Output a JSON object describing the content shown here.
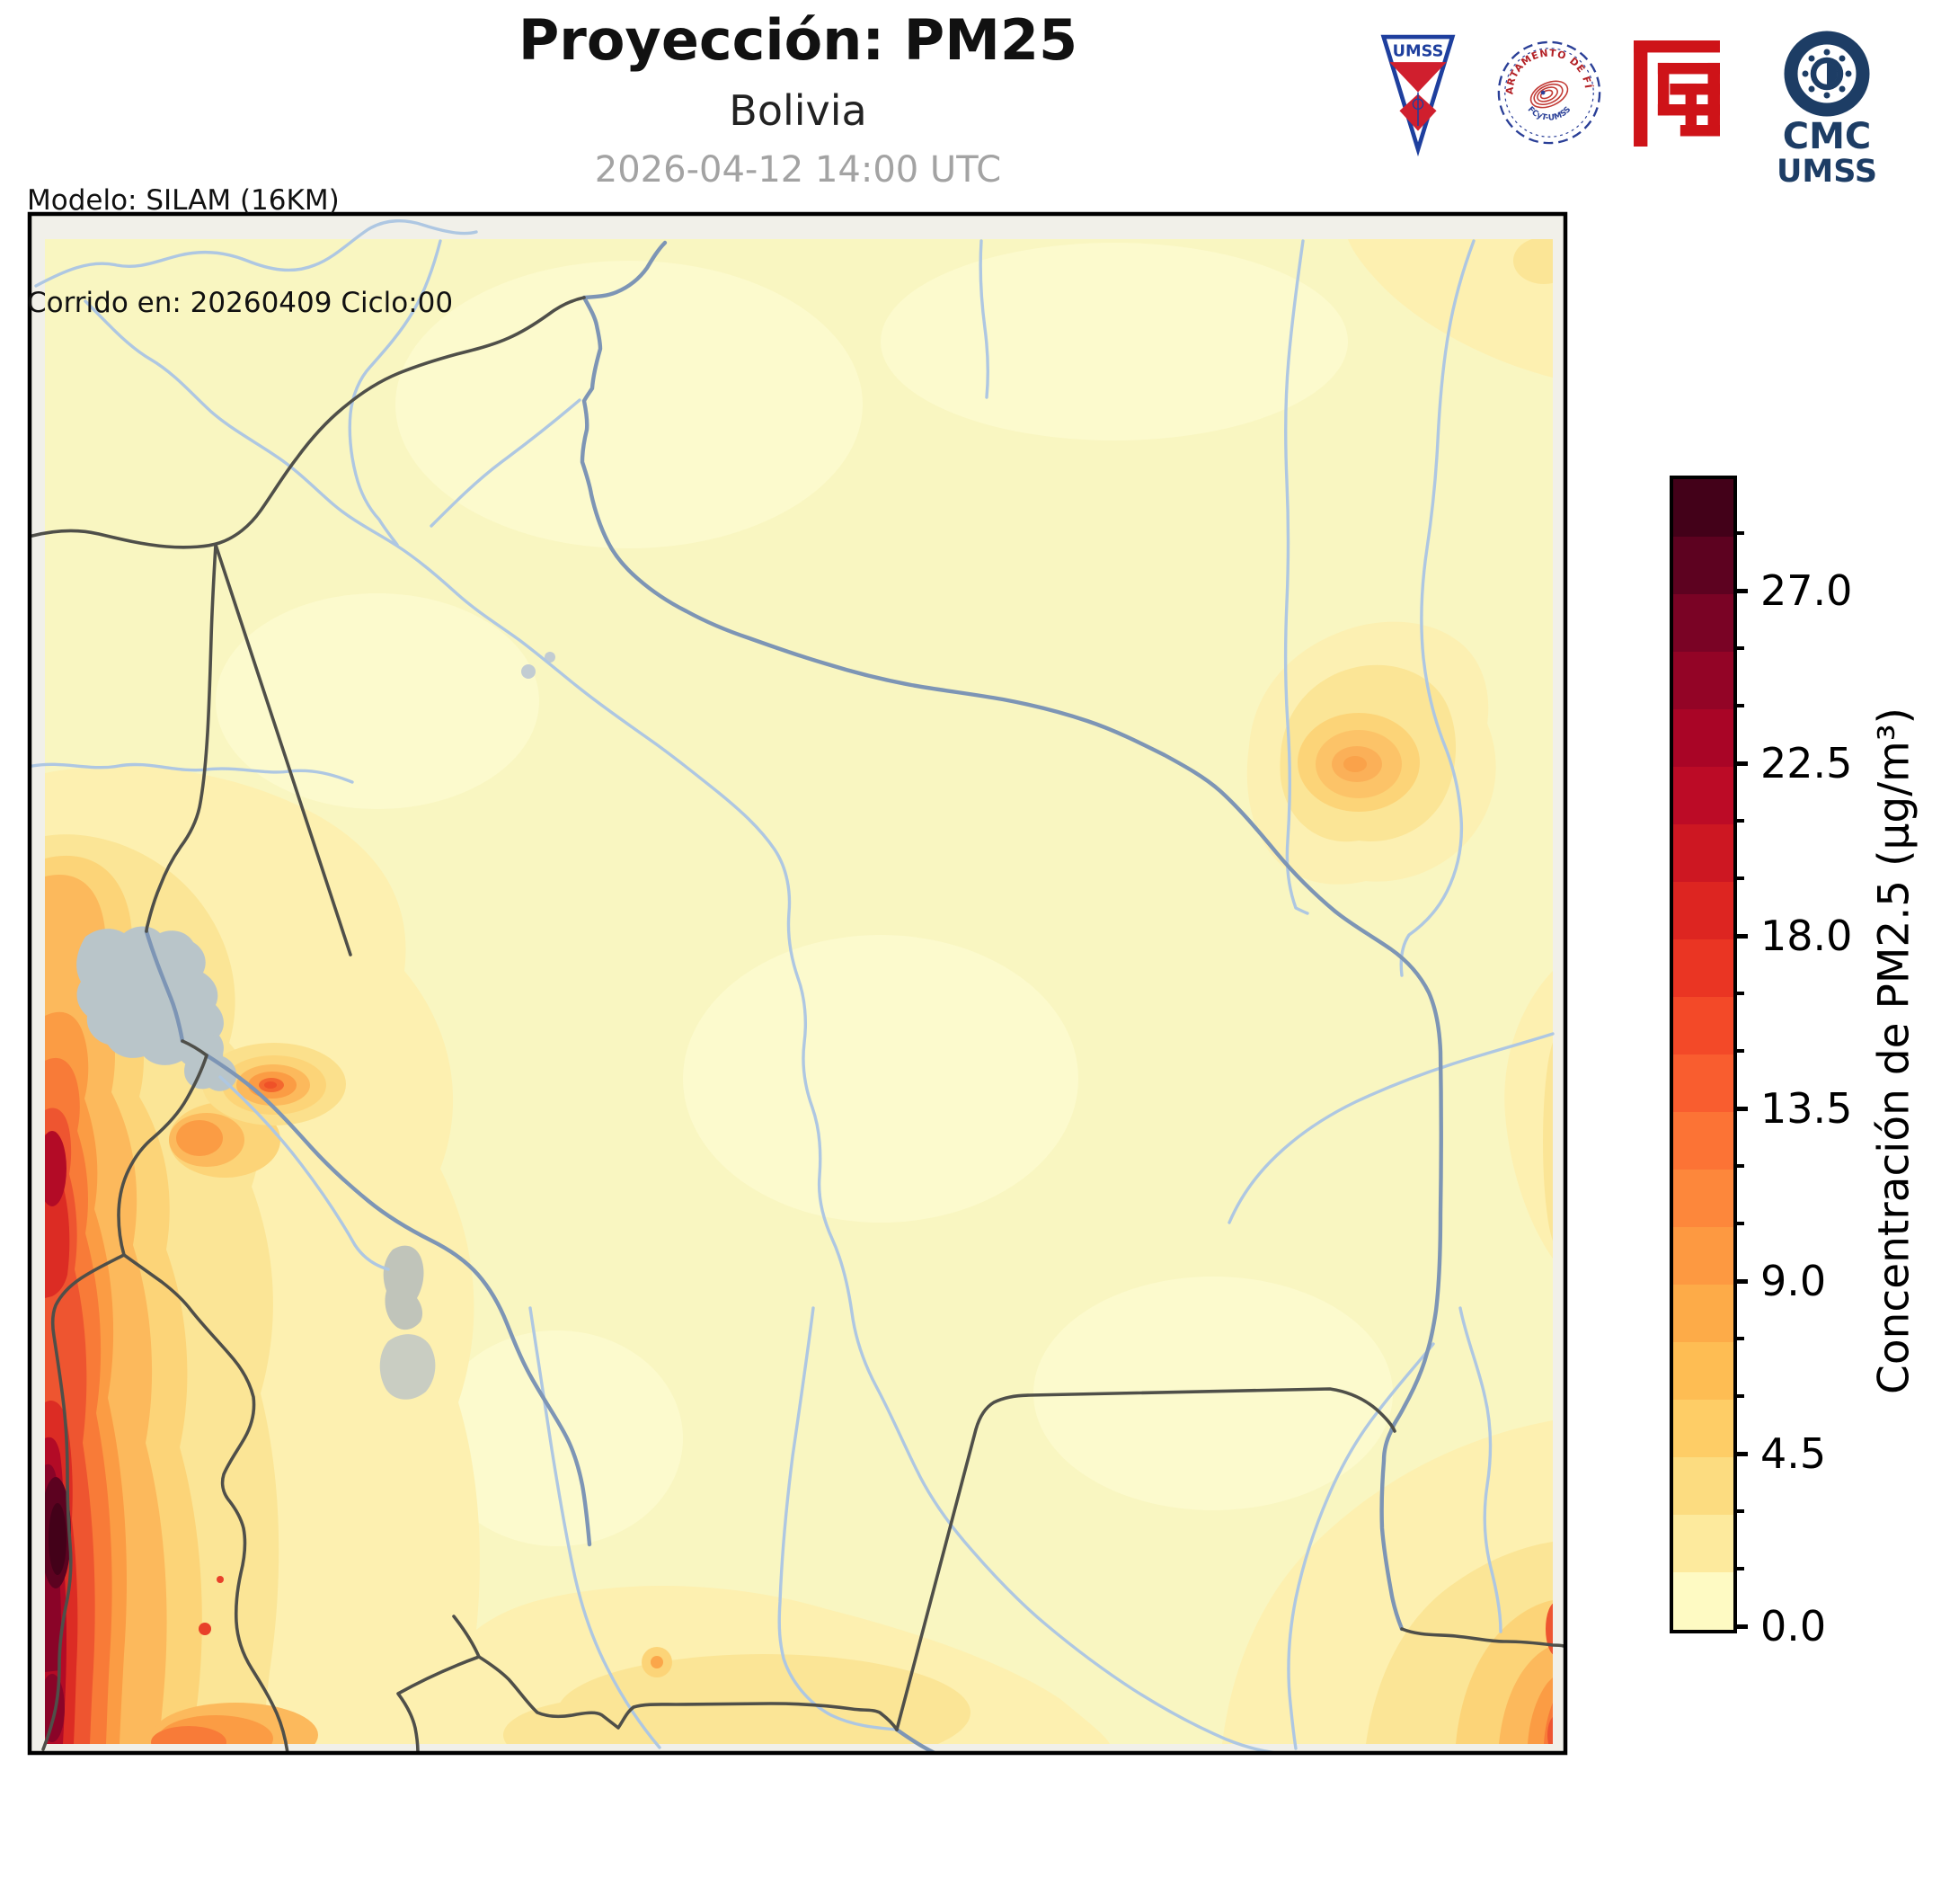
{
  "header": {
    "title": "Proyección: PM25",
    "subtitle": "Bolivia",
    "timestamp": "2026-04-12 14:00 UTC",
    "model_line1": "Modelo: SILAM (16KM)",
    "model_line2": "Corrido en: 20260409 Ciclo:00"
  },
  "logos": {
    "umss_text": "UMSS",
    "physics_seal_text_top": "DEPARTAMENTO DE FÍSICA",
    "physics_seal_text_bottom": "FCyT-UMSS",
    "cmc_text_line1": "CMC",
    "cmc_text_line2": "UMSS"
  },
  "colorbar": {
    "label": "Concentración de PM2.5 (µg/m³)",
    "unit": "µg/m³",
    "value_min": 0.0,
    "value_max": 30.0,
    "segment_step": 1.5,
    "tick_step_labeled": 4.5,
    "tick_labels_top_to_bottom": [
      "27.0",
      "22.5",
      "18.0",
      "13.5",
      "9.0",
      "4.5",
      "0.0"
    ],
    "segment_colors_top_to_bottom": [
      "#430119",
      "#5d0220",
      "#7a0325",
      "#930426",
      "#a90526",
      "#bc0b26",
      "#cd1722",
      "#dd2521",
      "#ea3523",
      "#f34928",
      "#f95d2f",
      "#fc7335",
      "#fd873b",
      "#fd9941",
      "#fdab48",
      "#febd53",
      "#fecd66",
      "#fcdc80",
      "#fdea9d",
      "#fefac3"
    ]
  },
  "map": {
    "region": "Bolivia",
    "variable": "PM2.5",
    "palette": {
      "base_fill": "#f9f6c1",
      "outside_domain": "#f1f0e9",
      "river": "#aec7e2",
      "river_dark": "#7d95b5",
      "border": "#4f4f49",
      "lake": "#b9c5c9",
      "salt_flat": "#c9cdc2",
      "frame": "#000000"
    },
    "hotspots": [
      "west-andes-red-band",
      "southwest-dark-maximum",
      "titicaca-adjacent-orange-spot",
      "northeast-moderate-orange-spot",
      "southeast-border-orange-gradient",
      "bottom-center-orange-band"
    ]
  }
}
